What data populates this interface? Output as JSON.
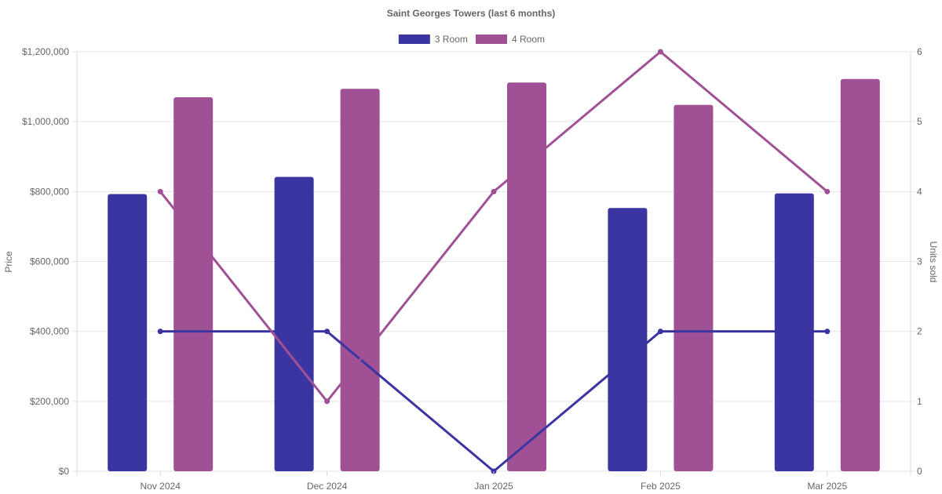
{
  "chart_data": {
    "type": "bar",
    "title": "Saint Georges Towers (last 6 months)",
    "categories": [
      "Nov 2024",
      "Dec 2024",
      "Jan 2025",
      "Feb 2025",
      "Mar 2025"
    ],
    "y_left": {
      "label": "Price",
      "ylim": [
        0,
        1200000
      ],
      "ticks": [
        "$0",
        "$200,000",
        "$400,000",
        "$600,000",
        "$800,000",
        "$1,000,000",
        "$1,200,000"
      ]
    },
    "y_right": {
      "label": "Units sold",
      "ylim": [
        0,
        6
      ],
      "ticks": [
        "0",
        "1",
        "2",
        "3",
        "4",
        "5",
        "6"
      ]
    },
    "series": [
      {
        "name": "3 Room",
        "color": "#3a35a1",
        "price": [
          793000,
          842000,
          0,
          753000,
          795000
        ],
        "units_sold": [
          2,
          2,
          0,
          2,
          2
        ]
      },
      {
        "name": "4 Room",
        "color": "#a05195",
        "price": [
          1070000,
          1094000,
          1112000,
          1048000,
          1122000
        ],
        "units_sold": [
          4,
          1,
          4,
          6,
          4
        ]
      }
    ],
    "legend_position": "top-center",
    "grid": true
  }
}
